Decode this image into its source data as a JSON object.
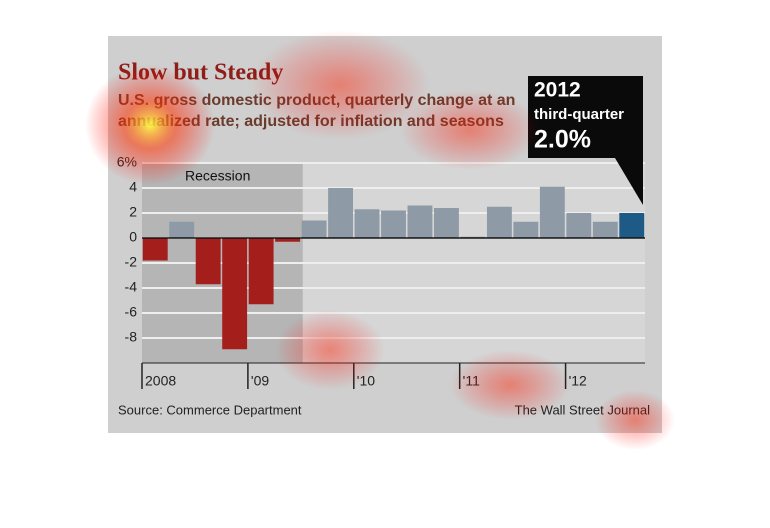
{
  "chart_data": {
    "type": "bar",
    "title": "Slow but Steady",
    "subtitle": "U.S. gross domestic product, quarterly change at an annualized rate; adjusted for inflation and seasons",
    "categories": [
      "2008",
      null,
      null,
      null,
      "'09",
      null,
      null,
      null,
      "'10",
      null,
      null,
      null,
      "'11",
      null,
      null,
      null,
      "'12",
      null,
      null
    ],
    "values": [
      -1.8,
      1.3,
      -3.7,
      -8.9,
      -5.3,
      -0.3,
      1.4,
      4.0,
      2.3,
      2.2,
      2.6,
      2.4,
      0.1,
      2.5,
      1.3,
      4.1,
      2.0,
      1.3,
      2.0
    ],
    "colors": [
      "#a41f1c",
      "#8e9ba7",
      "#a41f1c",
      "#a41f1c",
      "#a41f1c",
      "#a41f1c",
      "#8e9ba7",
      "#8e9ba7",
      "#8e9ba7",
      "#8e9ba7",
      "#8e9ba7",
      "#8e9ba7",
      "#8e9ba7",
      "#8e9ba7",
      "#8e9ba7",
      "#8e9ba7",
      "#8e9ba7",
      "#8e9ba7",
      "#1d5a86"
    ],
    "ylim": [
      -10,
      6
    ],
    "yticks": [
      -8,
      -6,
      -4,
      -2,
      0,
      2,
      4,
      {
        "value": 6,
        "label": "6%"
      }
    ],
    "grid": true,
    "shade": {
      "label": "Recession",
      "from": 0,
      "to": 5
    },
    "annotation": {
      "year": "2012",
      "label": "third-quarter",
      "value": "2.0%"
    },
    "source": "Source: Commerce Department",
    "credit": "The Wall Street Journal"
  }
}
